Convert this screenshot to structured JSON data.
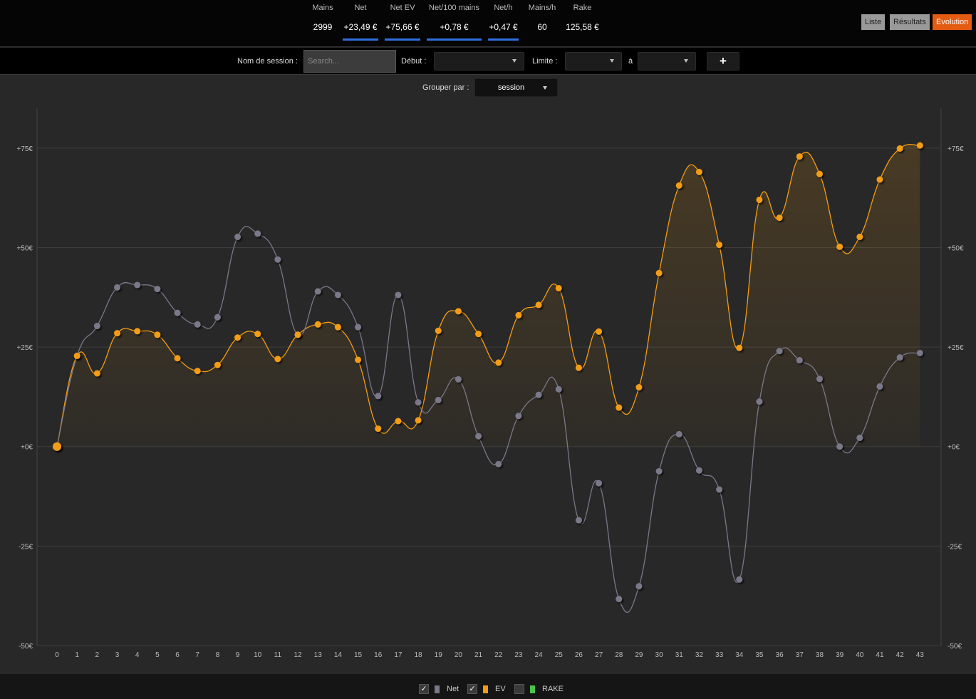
{
  "stats": [
    {
      "label": "Mains",
      "value": "2999",
      "underline": false
    },
    {
      "label": "Net",
      "value": "+23,49 €",
      "underline": true
    },
    {
      "label": "Net EV",
      "value": "+75,66 €",
      "underline": true
    },
    {
      "label": "Net/100 mains",
      "value": "+0,78 €",
      "underline": true
    },
    {
      "label": "Net/h",
      "value": "+0,47 €",
      "underline": true
    },
    {
      "label": "Mains/h",
      "value": "60",
      "underline": false
    },
    {
      "label": "Rake",
      "value": "125,58 €",
      "underline": false
    }
  ],
  "view_buttons": {
    "list": "Liste",
    "results": "Résultats",
    "evolution": "Evolution"
  },
  "filters": {
    "session_label": "Nom de session :",
    "search_placeholder": "Search...",
    "start_label": "Début :",
    "limit_label": "Limite :",
    "to_label": "à",
    "add_label": "+"
  },
  "group": {
    "label": "Grouper par :",
    "value": "session"
  },
  "legend": [
    {
      "label": "Net",
      "checked": true,
      "check": "✓",
      "color": "#7a7889"
    },
    {
      "label": "EV",
      "checked": true,
      "check": "✓",
      "color": "#f39c12"
    },
    {
      "label": "RAKE",
      "checked": false,
      "check": "",
      "color": "#4cc34c"
    }
  ],
  "chart_data": {
    "type": "line",
    "x": [
      0,
      1,
      2,
      3,
      4,
      5,
      6,
      7,
      8,
      9,
      10,
      11,
      12,
      13,
      14,
      15,
      16,
      17,
      18,
      19,
      20,
      21,
      22,
      23,
      24,
      25,
      26,
      27,
      28,
      29,
      30,
      31,
      32,
      33,
      34,
      35,
      36,
      37,
      38,
      39,
      40,
      41,
      42,
      43
    ],
    "ylim": [
      -50,
      85
    ],
    "y_ticks": [
      -50,
      -25,
      0,
      25,
      50,
      75
    ],
    "y_tick_labels": [
      "-50€",
      "-25€",
      "+0€",
      "+25€",
      "+50€",
      "+75€"
    ],
    "grid": true,
    "series": [
      {
        "name": "Net",
        "color": "#7a7889",
        "values": [
          0,
          22.8,
          30.3,
          40.0,
          40.6,
          39.6,
          33.6,
          30.7,
          32.5,
          52.7,
          53.5,
          47.0,
          28.1,
          39.0,
          38.1,
          30.0,
          12.7,
          38.1,
          11.1,
          11.7,
          16.9,
          2.6,
          -4.4,
          7.7,
          13.0,
          14.4,
          -18.5,
          -9.2,
          -38.3,
          -35.1,
          -6.2,
          3.1,
          -6.0,
          -10.8,
          -33.4,
          11.3,
          24.0,
          21.7,
          17.0,
          0,
          2.2,
          15.1,
          22.4,
          23.5
        ]
      },
      {
        "name": "EV",
        "color": "#f39c12",
        "values": [
          0,
          22.8,
          18.4,
          28.5,
          29.0,
          28.1,
          22.2,
          19.0,
          20.5,
          27.4,
          28.3,
          22.0,
          28.1,
          30.7,
          30.0,
          21.8,
          4.5,
          6.4,
          6.6,
          29.1,
          34.0,
          28.3,
          21.1,
          33.0,
          35.6,
          39.8,
          19.8,
          28.9,
          9.8,
          14.9,
          43.6,
          65.6,
          69.0,
          50.7,
          24.8,
          62.0,
          57.5,
          72.9,
          68.5,
          50.2,
          52.7,
          67.1,
          74.9,
          75.66
        ]
      }
    ]
  }
}
